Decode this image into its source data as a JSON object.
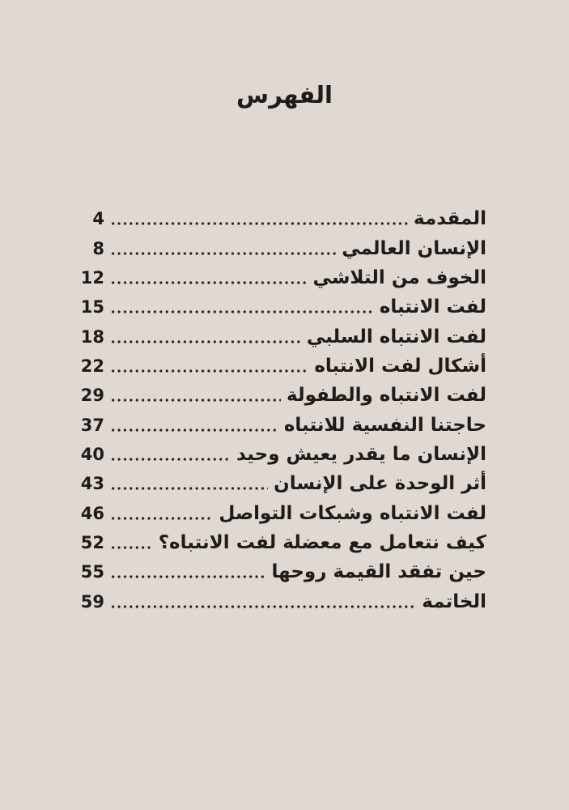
{
  "page": {
    "background_color": "#e0d9d3",
    "text_color": "#1e1c1a",
    "heading": "الفهرس"
  },
  "toc": {
    "entries": [
      {
        "title": "المقدمة",
        "page": "4"
      },
      {
        "title": "الإنسان العالمي",
        "page": "8"
      },
      {
        "title": "الخوف من التلاشي",
        "page": "12"
      },
      {
        "title": "لفت الانتباه",
        "page": "15"
      },
      {
        "title": "لفت الانتباه السلبي",
        "page": "18"
      },
      {
        "title": "أشكال لفت الانتباه",
        "page": "22"
      },
      {
        "title": "لفت الانتباه والطفولة",
        "page": "29"
      },
      {
        "title": "حاجتنا النفسية للانتباه",
        "page": "37"
      },
      {
        "title": "الإنسان ما يقدر يعيش وحيد",
        "page": "40"
      },
      {
        "title": "أثر الوحدة على الإنسان",
        "page": "43"
      },
      {
        "title": "لفت الانتباه وشبكات التواصل",
        "page": "46"
      },
      {
        "title": "كيف نتعامل مع معضلة لفت الانتباه؟",
        "page": "52"
      },
      {
        "title": "حين تفقد القيمة روحها",
        "page": "55"
      },
      {
        "title": "الخاتمة",
        "page": "59"
      }
    ]
  }
}
